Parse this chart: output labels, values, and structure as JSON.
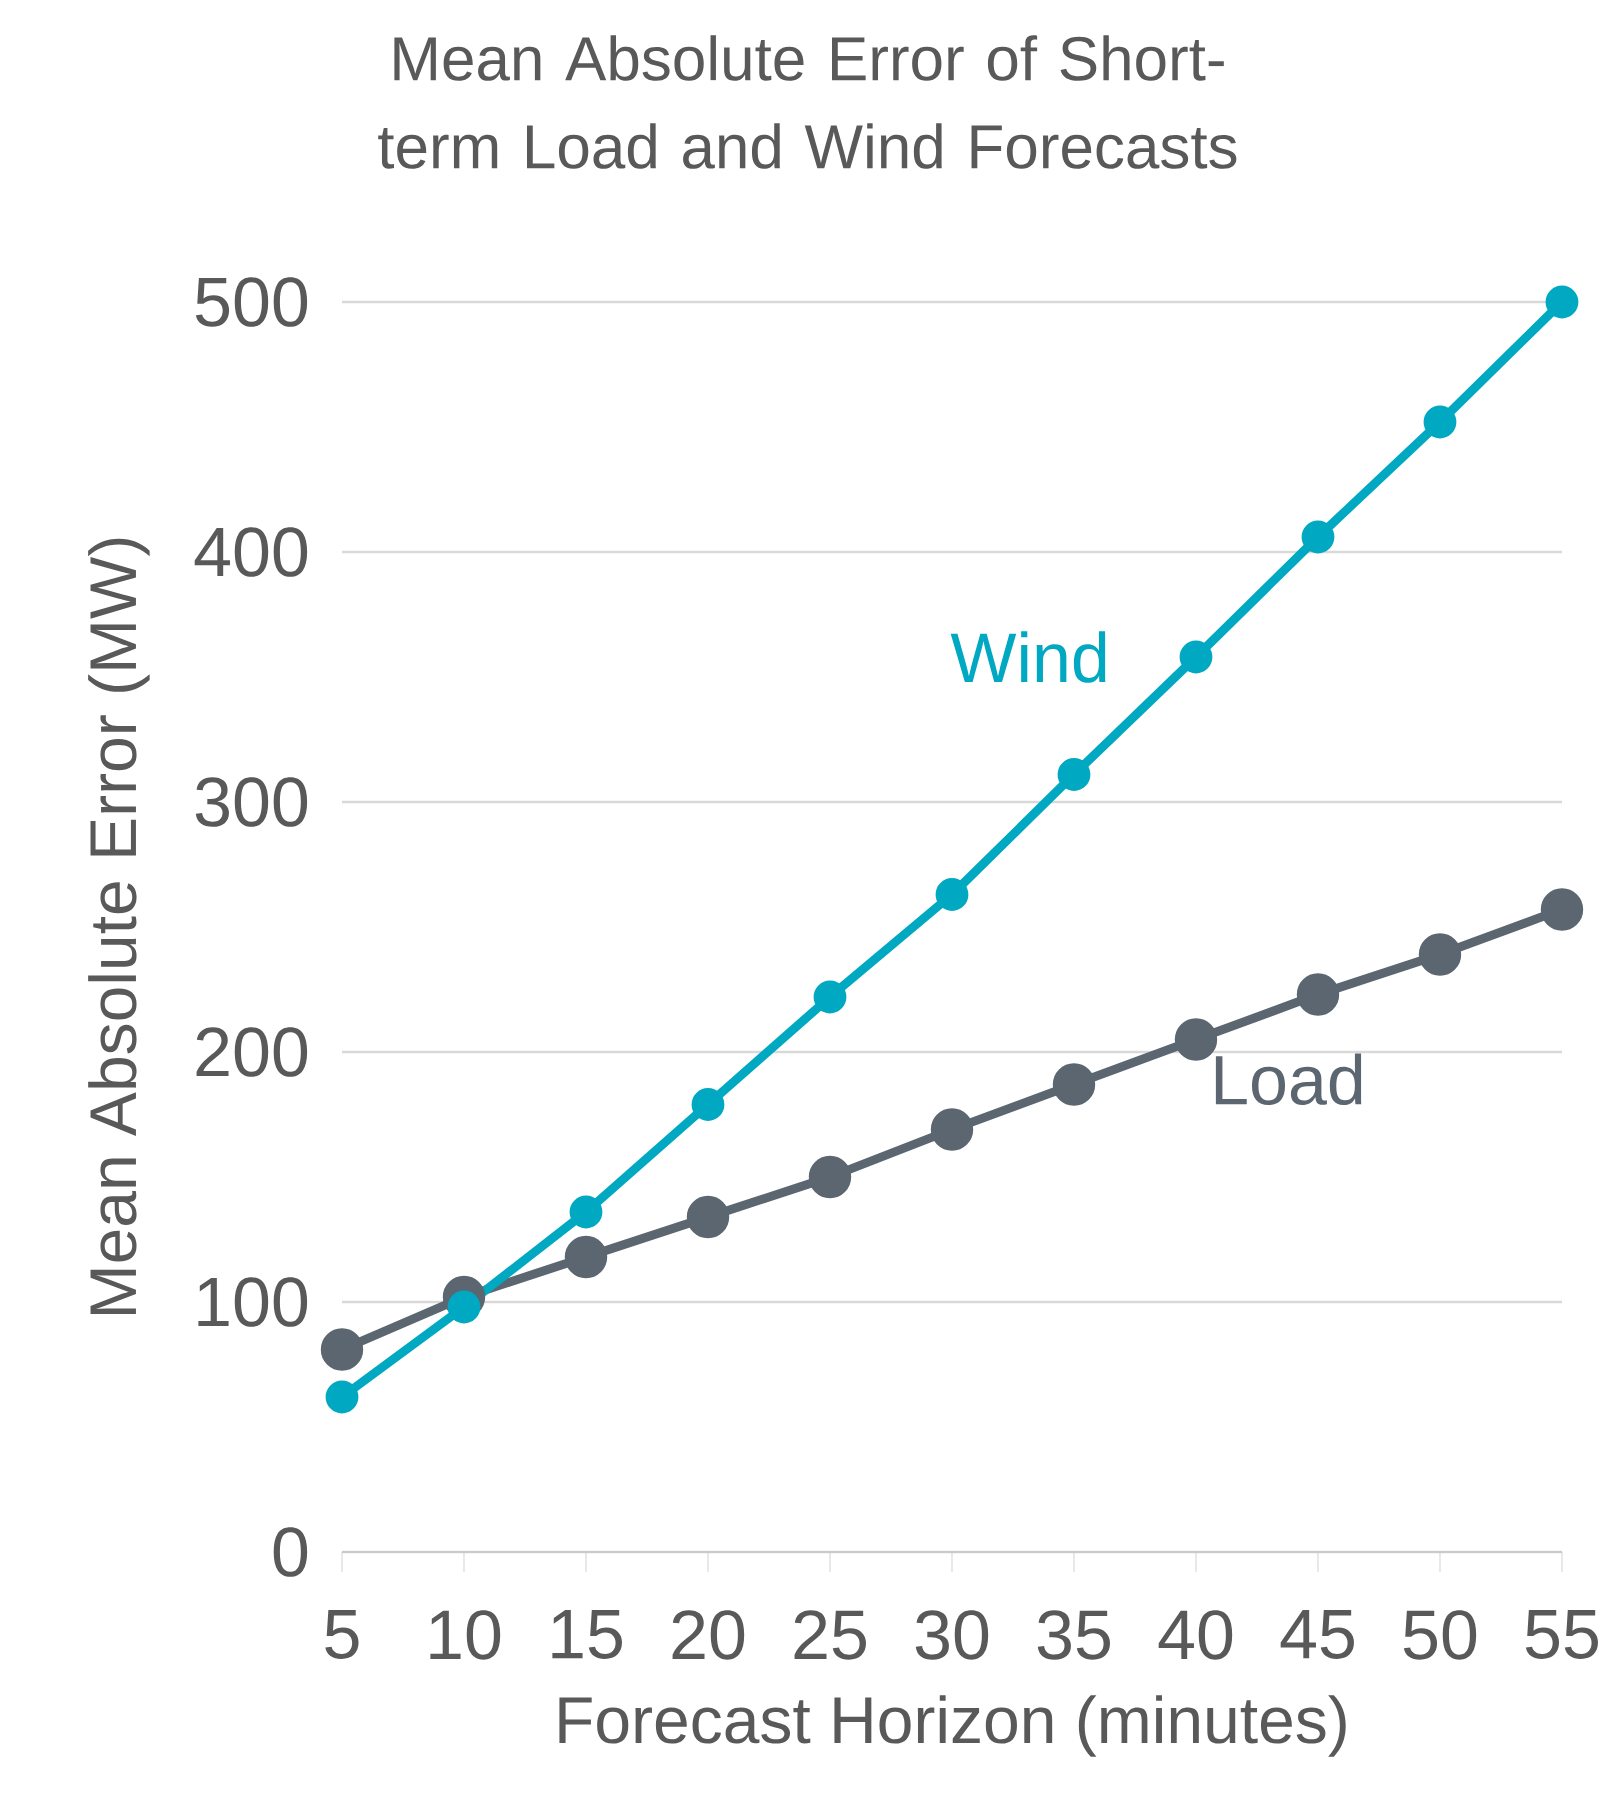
{
  "chart_data": {
    "type": "line",
    "title": "Mean Absolute Error of Short-term Load and Wind Forecasts",
    "xlabel": "Forecast Horizon (minutes)",
    "ylabel": "Mean Absolute Error (MW)",
    "x": [
      5,
      10,
      15,
      20,
      25,
      30,
      35,
      40,
      45,
      50,
      55
    ],
    "series": [
      {
        "name": "Load",
        "color": "#5b6670",
        "values": [
          81,
          102,
          118,
          134,
          150,
          169,
          187,
          205,
          223,
          239,
          257
        ]
      },
      {
        "name": "Wind",
        "color": "#00a9c1",
        "values": [
          62,
          98,
          136,
          179,
          222,
          263,
          311,
          358,
          406,
          452,
          500
        ]
      }
    ],
    "xlim": [
      5,
      55
    ],
    "xticks": [
      5,
      10,
      15,
      20,
      25,
      30,
      35,
      40,
      45,
      50,
      55
    ],
    "ylim": [
      0,
      500
    ],
    "yticks": [
      0,
      100,
      200,
      300,
      400,
      500
    ],
    "grid": "y",
    "marker": "circle",
    "line_style": "solid",
    "legend": false
  }
}
